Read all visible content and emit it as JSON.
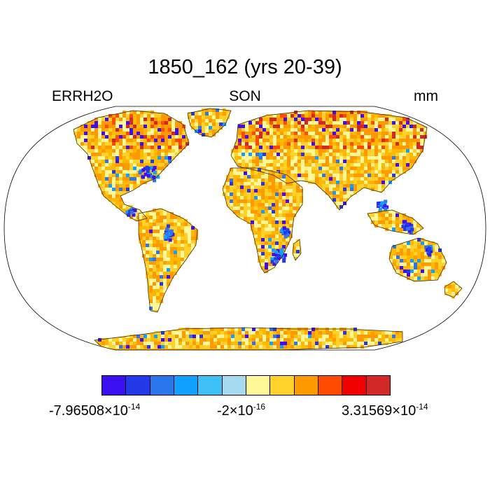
{
  "title": "1850_162 (yrs 20-39)",
  "left_string": "ERRH2O",
  "center_string": "SON",
  "right_string": "mm",
  "projection": "Robinson",
  "colorbar": {
    "colors": [
      "#3b0ff0",
      "#2338e6",
      "#2c76ec",
      "#10a0ff",
      "#3ec0f7",
      "#a7d9f1",
      "#fff79a",
      "#ffd12a",
      "#ff9900",
      "#ff4a00",
      "#f00000",
      "#d22828"
    ],
    "labels": [
      {
        "mantissa": "-7.96508",
        "times": "×10",
        "exponent": "-14"
      },
      {
        "mantissa": "-2",
        "times": "×10",
        "exponent": "-16"
      },
      {
        "mantissa": "3.31569",
        "times": "×10",
        "exponent": "-14"
      }
    ]
  },
  "map_colors": {
    "land_dominant": [
      "#ffd12a",
      "#ff9900",
      "#ffb800",
      "#fff79a"
    ],
    "negative": [
      "#2338e6",
      "#3b0ff0",
      "#2c76ec",
      "#10a0ff"
    ],
    "high_latitude_mixed": [
      "#3b0ff0",
      "#ff4a00",
      "#d22828",
      "#ff9900"
    ]
  }
}
